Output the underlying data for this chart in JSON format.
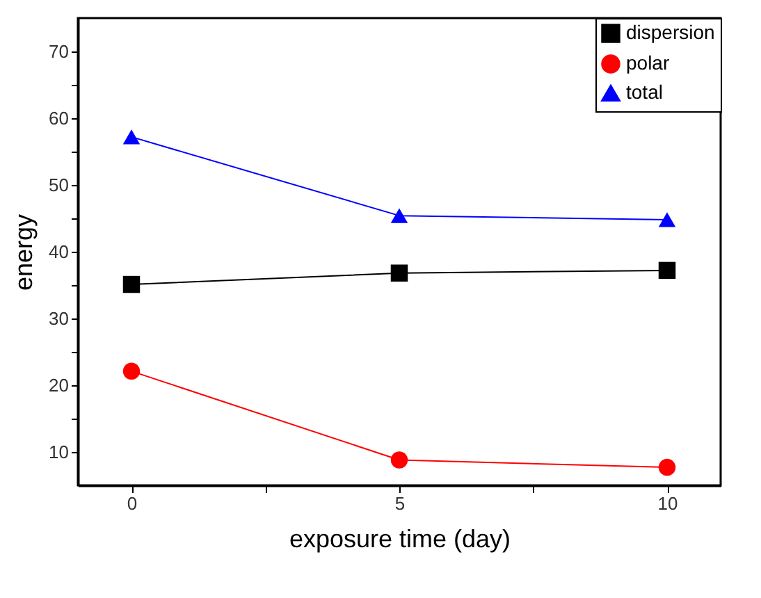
{
  "chart_data": {
    "type": "line",
    "xlabel": "exposure time (day)",
    "ylabel": "energy",
    "x": [
      0,
      5,
      10
    ],
    "series": [
      {
        "name": "dispersion",
        "color": "#000000",
        "marker": "square",
        "values": [
          35.1,
          36.8,
          37.2
        ]
      },
      {
        "name": "polar",
        "color": "#ff0000",
        "marker": "circle",
        "values": [
          22.1,
          8.8,
          7.7
        ]
      },
      {
        "name": "total",
        "color": "#0000ff",
        "marker": "triangle",
        "values": [
          57.2,
          45.4,
          44.8
        ]
      }
    ],
    "xlim": [
      -1,
      11
    ],
    "xticks": [
      0,
      {
        "value": 2.5,
        "label": null
      },
      5,
      {
        "value": 7.5,
        "label": null
      },
      10
    ],
    "ylim": [
      5,
      75
    ],
    "yticks": [
      10,
      {
        "value": 15,
        "label": null
      },
      20,
      {
        "value": 25,
        "label": null
      },
      30,
      {
        "value": 35,
        "label": null
      },
      40,
      {
        "value": 45,
        "label": null
      },
      50,
      {
        "value": 55,
        "label": null
      },
      60,
      {
        "value": 65,
        "label": null
      },
      70
    ],
    "grid": false,
    "legend": "top right"
  }
}
